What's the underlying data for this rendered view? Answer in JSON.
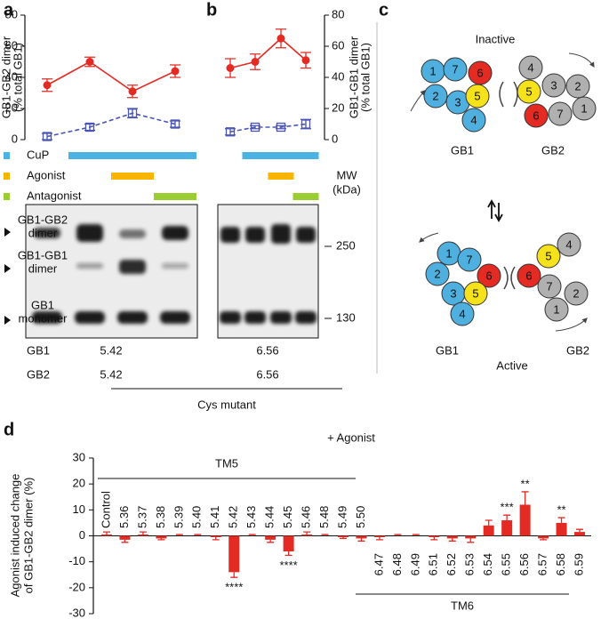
{
  "panels": [
    "a",
    "b",
    "c",
    "d"
  ],
  "chart_data": [
    {
      "type": "line",
      "ylabel": [
        "GB1-GB2 dimer",
        "(% total GB1)"
      ],
      "ylabel_color": "#e32b24",
      "axis_side": "left",
      "ylim": [
        0,
        80
      ],
      "yticks": [
        0,
        20,
        40,
        60,
        80
      ],
      "series": [
        {
          "color": "#e32b24",
          "style": "solid",
          "marker": "filled-circle",
          "values": [
            35,
            50,
            31,
            44
          ],
          "errors": [
            4,
            3,
            4,
            4
          ]
        },
        {
          "color": "#4a55b5",
          "style": "dashed",
          "marker": "open-square",
          "values": [
            2,
            8,
            17,
            10
          ],
          "errors": [
            2,
            2,
            3,
            2
          ]
        }
      ]
    },
    {
      "type": "line",
      "ylabel": [
        "GB1-GB1 dimer",
        "(% total GB1)"
      ],
      "ylabel_color": "#4a55b5",
      "axis_side": "right",
      "ylim": [
        0,
        80
      ],
      "yticks": [
        0,
        20,
        40,
        60,
        80
      ],
      "series": [
        {
          "color": "#e32b24",
          "style": "solid",
          "marker": "filled-circle",
          "values": [
            46,
            50,
            65,
            51
          ],
          "errors": [
            6,
            5,
            6,
            5
          ]
        },
        {
          "color": "#4a55b5",
          "style": "dashed",
          "marker": "open-square",
          "values": [
            5,
            8,
            8,
            10
          ],
          "errors": [
            2,
            1,
            1,
            3
          ]
        }
      ]
    },
    {
      "type": "bar",
      "ylabel": [
        "Agonist induced change",
        "of GB1-GB2 dimer (%)"
      ],
      "annotation": "+ Agonist",
      "groups": [
        "TM5",
        "TM6"
      ],
      "color": "#e32b24",
      "categories": [
        "Control",
        "5.36",
        "5.37",
        "5.38",
        "5.39",
        "5.40",
        "5.41",
        "5.42",
        "5.43",
        "5.44",
        "5.45",
        "5.46",
        "5.48",
        "5.49",
        "5.50",
        "6.47",
        "6.48",
        "6.49",
        "6.51",
        "6.52",
        "6.53",
        "6.54",
        "6.55",
        "6.56",
        "6.57",
        "6.58",
        "6.59"
      ],
      "values": [
        0.5,
        -1.5,
        0.5,
        -1,
        0,
        0,
        -0.5,
        -14,
        0,
        -1.5,
        -6,
        0.5,
        0,
        -0.5,
        -1,
        -0.5,
        0,
        0,
        -0.5,
        -1,
        -1,
        4,
        6,
        12,
        -1,
        5,
        1.5
      ],
      "errors": [
        1,
        1,
        1,
        0.5,
        0.5,
        0.5,
        1,
        2,
        0.5,
        1,
        1.5,
        1,
        0.5,
        0.5,
        1,
        1,
        0.5,
        0.5,
        1,
        1,
        1.5,
        2,
        2,
        5,
        0.5,
        2,
        1
      ],
      "significance": [
        null,
        null,
        null,
        null,
        null,
        null,
        null,
        "****",
        null,
        null,
        "****",
        null,
        null,
        null,
        null,
        null,
        null,
        null,
        null,
        null,
        null,
        null,
        "***",
        "**",
        null,
        "**",
        null
      ],
      "ylim": [
        -30,
        30
      ],
      "yticks": [
        -30,
        -20,
        -10,
        0,
        10,
        20,
        30
      ]
    }
  ],
  "treatments": [
    {
      "name": "CuP",
      "color": "#4bb3e3",
      "a": [
        false,
        true,
        true,
        true
      ],
      "b": [
        false,
        true,
        true,
        true
      ]
    },
    {
      "name": "Agonist",
      "color": "#f7b500",
      "a": [
        false,
        false,
        true,
        false
      ],
      "b": [
        false,
        false,
        true,
        false
      ]
    },
    {
      "name": "Antagonist",
      "color": "#9acd32",
      "a": [
        false,
        false,
        false,
        true
      ],
      "b": [
        false,
        false,
        false,
        true
      ]
    }
  ],
  "blot": {
    "bands": [
      {
        "lines": [
          "GB1-GB2",
          "dimer"
        ],
        "color": "#e32b24"
      },
      {
        "lines": [
          "GB1-GB1",
          "dimer"
        ],
        "color": "#4a55b5"
      },
      {
        "lines": [
          "GB1",
          "monomer"
        ],
        "color": "#111111"
      }
    ],
    "mw_title": [
      "MW",
      "(kDa)"
    ],
    "mw_markers": [
      "250",
      "130"
    ],
    "rows": [
      {
        "name": "GB1",
        "values": [
          "5.42",
          "6.56"
        ]
      },
      {
        "name": "GB2",
        "values": [
          "5.42",
          "6.56"
        ]
      }
    ],
    "footer": "Cys mutant"
  },
  "diagram": {
    "inactive": {
      "label": "Inactive",
      "gb1": {
        "label": "GB1",
        "subunits": [
          {
            "label": "1",
            "color": "#4fb0e0"
          },
          {
            "label": "7",
            "color": "#4fb0e0"
          },
          {
            "label": "6",
            "color": "#e32b24"
          },
          {
            "label": "2",
            "color": "#4fb0e0"
          },
          {
            "label": "3",
            "color": "#4fb0e0"
          },
          {
            "label": "5",
            "color": "#f5e21b"
          },
          {
            "label": "4",
            "color": "#4fb0e0"
          }
        ]
      },
      "gb2": {
        "label": "GB2",
        "subunits": [
          {
            "label": "4",
            "color": "#b0b0b0"
          },
          {
            "label": "3",
            "color": "#b0b0b0"
          },
          {
            "label": "2",
            "color": "#b0b0b0"
          },
          {
            "label": "5",
            "color": "#f5e21b"
          },
          {
            "label": "6",
            "color": "#e32b24"
          },
          {
            "label": "7",
            "color": "#b0b0b0"
          },
          {
            "label": "1",
            "color": "#b0b0b0"
          }
        ]
      }
    },
    "active": {
      "label": "Active",
      "gb1": {
        "label": "GB1",
        "subunits": [
          {
            "label": "1",
            "color": "#4fb0e0"
          },
          {
            "label": "7",
            "color": "#4fb0e0"
          },
          {
            "label": "2",
            "color": "#4fb0e0"
          },
          {
            "label": "6",
            "color": "#e32b24"
          },
          {
            "label": "3",
            "color": "#4fb0e0"
          },
          {
            "label": "5",
            "color": "#f5e21b"
          },
          {
            "label": "4",
            "color": "#4fb0e0"
          }
        ]
      },
      "gb2": {
        "label": "GB2",
        "subunits": [
          {
            "label": "4",
            "color": "#b0b0b0"
          },
          {
            "label": "5",
            "color": "#f5e21b"
          },
          {
            "label": "6",
            "color": "#e32b24"
          },
          {
            "label": "7",
            "color": "#b0b0b0"
          },
          {
            "label": "2",
            "color": "#b0b0b0"
          },
          {
            "label": "1",
            "color": "#b0b0b0"
          }
        ]
      }
    }
  }
}
